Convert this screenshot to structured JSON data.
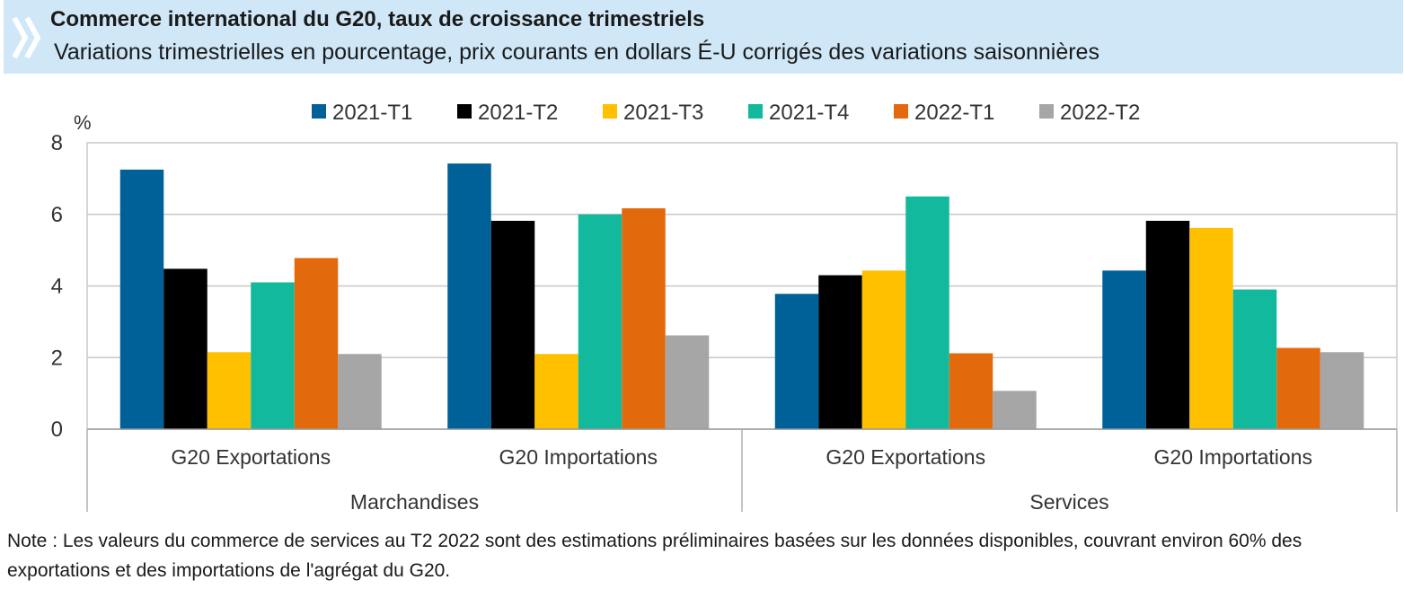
{
  "header": {
    "title": "Commerce international du G20, taux de croissance trimestriels",
    "subtitle": "Variations trimestrielles en pourcentage, prix courants en dollars É-U corrigés des variations saisonnières"
  },
  "note": "Note : Les valeurs du commerce de services au T2 2022 sont des estimations préliminaires basées sur les données disponibles, couvrant environ 60% des exportations et des importations de l'agrégat du G20.",
  "colors": {
    "banner": "#cfe7f7",
    "series": [
      "#006198",
      "#000000",
      "#ffc000",
      "#12b99c",
      "#e3690d",
      "#a6a6a6"
    ]
  },
  "chart_data": {
    "type": "bar",
    "ylabel": "%",
    "ylim": [
      0,
      8
    ],
    "yticks": [
      0,
      2,
      4,
      6,
      8
    ],
    "grid": true,
    "legend": "top",
    "groups": [
      {
        "label": "Marchandises",
        "categories": [
          "G20 Exportations",
          "G20 Importations"
        ]
      },
      {
        "label": "Services",
        "categories": [
          "G20 Exportations",
          "G20 Importations"
        ]
      }
    ],
    "categories": [
      "G20 Exportations",
      "G20 Importations",
      "G20 Exportations",
      "G20 Importations"
    ],
    "series": [
      {
        "name": "2021-T1",
        "values": [
          7.25,
          7.42,
          3.78,
          4.43
        ]
      },
      {
        "name": "2021-T2",
        "values": [
          4.48,
          5.82,
          4.3,
          5.82
        ]
      },
      {
        "name": "2021-T3",
        "values": [
          2.15,
          2.1,
          4.43,
          5.62
        ]
      },
      {
        "name": "2021-T4",
        "values": [
          4.1,
          6.0,
          6.5,
          3.9
        ]
      },
      {
        "name": "2022-T1",
        "values": [
          4.78,
          6.17,
          2.12,
          2.27
        ]
      },
      {
        "name": "2022-T2",
        "values": [
          2.1,
          2.62,
          1.07,
          2.15
        ]
      }
    ]
  }
}
